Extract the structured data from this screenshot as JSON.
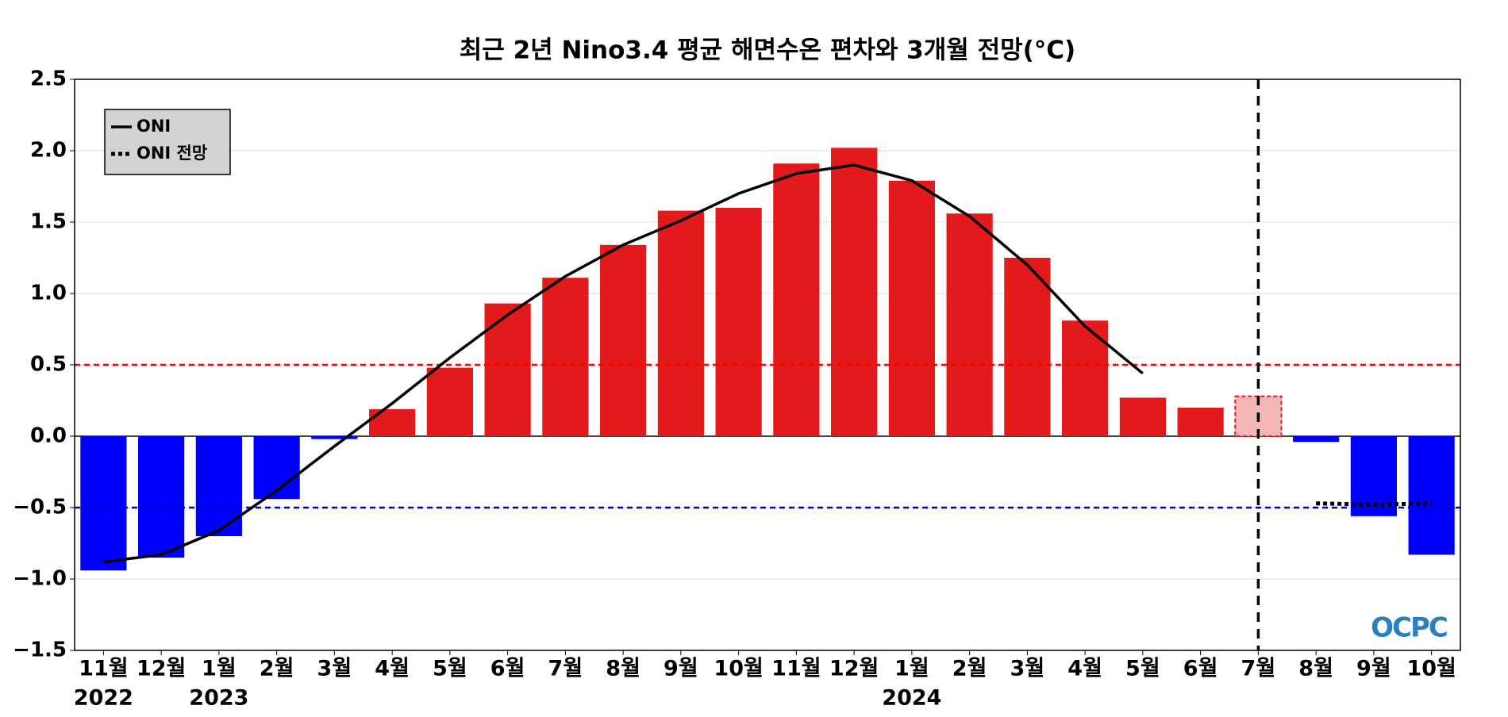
{
  "chart_data": {
    "type": "bar",
    "title": "최근 2년 Nino3.4 평균 해면수온 편차와 3개월 전망(°C)",
    "categories": [
      "11월",
      "12월",
      "1월",
      "2월",
      "3월",
      "4월",
      "5월",
      "6월",
      "7월",
      "8월",
      "9월",
      "10월",
      "11월",
      "12월",
      "1월",
      "2월",
      "3월",
      "4월",
      "5월",
      "6월",
      "7월",
      "8월",
      "9월",
      "10월"
    ],
    "years": [
      "2022",
      null,
      "2023",
      null,
      null,
      null,
      null,
      null,
      null,
      null,
      null,
      null,
      null,
      null,
      "2024",
      null,
      null,
      null,
      null,
      null,
      null,
      null,
      null,
      null
    ],
    "bars": {
      "values": [
        -0.94,
        -0.85,
        -0.7,
        -0.44,
        -0.02,
        0.19,
        0.48,
        0.93,
        1.11,
        1.34,
        1.58,
        1.6,
        1.91,
        2.02,
        1.79,
        1.56,
        1.25,
        0.81,
        0.27,
        0.2,
        null,
        -0.04,
        -0.56,
        -0.83
      ],
      "positive_color": "#e31a1c",
      "negative_color": "#0000ff"
    },
    "forecast_bars": {
      "values": [
        null,
        null,
        null,
        null,
        null,
        null,
        null,
        null,
        null,
        null,
        null,
        null,
        null,
        null,
        null,
        null,
        null,
        null,
        null,
        null,
        0.28,
        null,
        null,
        null
      ],
      "color": "#f4b6b6",
      "edge_color": "#e31a1c"
    },
    "series": [
      {
        "name": "ONI",
        "color": "#000000",
        "style": "solid",
        "values": [
          -0.88,
          -0.83,
          -0.66,
          -0.38,
          -0.07,
          0.23,
          0.55,
          0.85,
          1.12,
          1.34,
          1.51,
          1.7,
          1.84,
          1.9,
          1.79,
          1.54,
          1.2,
          0.77,
          0.44,
          null,
          null,
          null,
          null,
          null
        ]
      },
      {
        "name": "ONI 전망",
        "color": "#000000",
        "style": "dotted",
        "values": [
          null,
          null,
          null,
          null,
          null,
          null,
          null,
          null,
          null,
          null,
          null,
          null,
          null,
          null,
          null,
          null,
          null,
          null,
          null,
          null,
          null,
          -0.47,
          -0.48,
          -0.47
        ]
      }
    ],
    "reference_lines": [
      {
        "value": 0.5,
        "color": "#ff0000"
      },
      {
        "value": -0.5,
        "color": "#0000cc"
      }
    ],
    "vline_index": 20,
    "ylim": [
      -1.5,
      2.5
    ],
    "yticks": [
      {
        "value": -1.5,
        "label": "−1.5"
      },
      {
        "value": -1,
        "label": "−1.0"
      },
      {
        "value": -0.5,
        "label": "−0.5"
      },
      {
        "value": 0,
        "label": "0.0"
      },
      0.5,
      {
        "value": 1,
        "label": "1.0"
      },
      1.5,
      {
        "value": 2,
        "label": "2.0"
      },
      2.5
    ],
    "grid": true,
    "legend": "upper left",
    "logo": "OCPC"
  }
}
